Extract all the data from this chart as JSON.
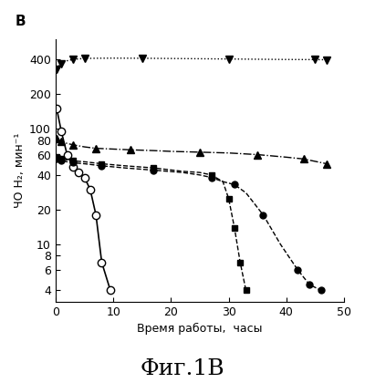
{
  "title_label": "B",
  "xlabel": "Время работы,  часы",
  "ylabel": "ЧО H₂, мин⁻¹",
  "caption": "Фиг.1В",
  "xlim": [
    0,
    50
  ],
  "ylim_log": [
    3.2,
    600
  ],
  "yticks": [
    4,
    6,
    8,
    10,
    20,
    40,
    60,
    80,
    100,
    200,
    400
  ],
  "xticks": [
    0,
    10,
    20,
    30,
    40,
    50
  ],
  "series_inv_tri": {
    "x": [
      0.2,
      0.5,
      1,
      2,
      3,
      4,
      5,
      7,
      10,
      15,
      20,
      25,
      30,
      35,
      40,
      45,
      47
    ],
    "y": [
      330,
      350,
      370,
      390,
      400,
      405,
      408,
      410,
      411,
      410,
      408,
      406,
      404,
      402,
      400,
      399,
      398
    ],
    "marker": "v",
    "linestyle": "dotted",
    "color": "#000000",
    "markersize": 6,
    "markevery": [
      0,
      2,
      4,
      6,
      9,
      12,
      15,
      16
    ]
  },
  "series_open_circle": {
    "x": [
      0.2,
      1,
      2,
      3,
      4,
      5,
      6,
      7,
      8,
      9.5
    ],
    "y": [
      150,
      95,
      60,
      47,
      42,
      38,
      30,
      18,
      7,
      4
    ],
    "marker": "o",
    "linestyle": "solid",
    "color": "#000000",
    "markerfacecolor": "white",
    "markersize": 6
  },
  "series_tri_up": {
    "x": [
      0.2,
      0.5,
      1,
      2,
      3,
      5,
      7,
      10,
      13,
      17,
      20,
      25,
      30,
      35,
      40,
      43,
      47
    ],
    "y": [
      82,
      80,
      78,
      75,
      73,
      70,
      68,
      67,
      66,
      65,
      64,
      63,
      62,
      60,
      57,
      55,
      50
    ],
    "marker": "^",
    "linestyle": "dashdot",
    "color": "#000000",
    "markersize": 6,
    "markevery": [
      0,
      2,
      4,
      6,
      8,
      11,
      13,
      15,
      16
    ]
  },
  "series_square": {
    "x": [
      0.2,
      0.5,
      1,
      2,
      3,
      5,
      8,
      12,
      17,
      22,
      25,
      27,
      29,
      30,
      31,
      32,
      33
    ],
    "y": [
      57,
      56,
      55,
      54,
      53,
      52,
      50,
      48,
      46,
      43,
      42,
      40,
      35,
      25,
      14,
      7,
      4
    ],
    "marker": "s",
    "linestyle": "dashed",
    "color": "#000000",
    "markersize": 5,
    "markevery": [
      0,
      2,
      4,
      6,
      8,
      11,
      13,
      14,
      15,
      16
    ]
  },
  "series_filled_circle": {
    "x": [
      0.2,
      0.5,
      1,
      2,
      3,
      5,
      8,
      12,
      17,
      22,
      25,
      27,
      29,
      31,
      33,
      36,
      39,
      42,
      44,
      46
    ],
    "y": [
      55,
      54,
      53,
      52,
      51,
      50,
      48,
      46,
      44,
      42,
      40,
      38,
      35,
      33,
      28,
      18,
      10,
      6,
      4.5,
      4
    ],
    "marker": "o",
    "linestyle": "dashed",
    "color": "#000000",
    "markerfacecolor": "#000000",
    "markersize": 5,
    "markevery": [
      0,
      2,
      4,
      6,
      8,
      11,
      13,
      15,
      17,
      18,
      19
    ]
  }
}
